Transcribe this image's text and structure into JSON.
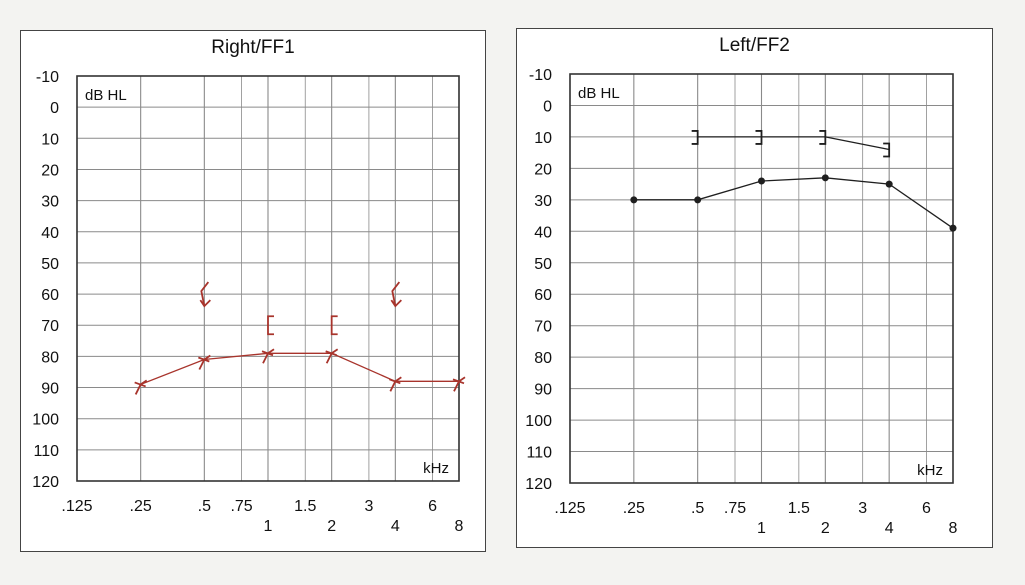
{
  "colors": {
    "right_trace": "#a8342c",
    "left_trace": "#1f1f1f",
    "grid": "#8a8a8a",
    "frame": "#333333"
  },
  "chart_data": [
    {
      "type": "line",
      "title": "Right/FF1",
      "ylabel": "dB HL",
      "xlabel": "kHz",
      "y_inverted": true,
      "ylim": [
        -10,
        120
      ],
      "yticks": [
        "-10",
        "0",
        "10",
        "20",
        "30",
        "40",
        "50",
        "60",
        "70",
        "80",
        "90",
        "100",
        "110",
        "120"
      ],
      "xticks": [
        ".125",
        ".25",
        ".5",
        ".75",
        "1",
        "1.5",
        "2",
        "3",
        "4",
        "6",
        "8"
      ],
      "grid": true,
      "series": [
        {
          "marker": "arrow",
          "x": [
            0.25,
            0.5,
            1,
            2,
            4,
            8
          ],
          "y": [
            89,
            81,
            79,
            79,
            88,
            88
          ]
        },
        {
          "marker": "[",
          "x": [
            1,
            2
          ],
          "y": [
            70,
            70
          ]
        },
        {
          "marker": "arrow-down",
          "x": [
            0.5,
            4
          ],
          "y": [
            60,
            60
          ]
        }
      ]
    },
    {
      "type": "line",
      "title": "Left/FF2",
      "ylabel": "dB HL",
      "xlabel": "kHz",
      "y_inverted": true,
      "ylim": [
        -10,
        120
      ],
      "yticks": [
        "-10",
        "0",
        "10",
        "20",
        "30",
        "40",
        "50",
        "60",
        "70",
        "80",
        "90",
        "100",
        "110",
        "120"
      ],
      "xticks": [
        ".125",
        ".25",
        ".5",
        ".75",
        "1",
        "1.5",
        "2",
        "3",
        "4",
        "6",
        "8"
      ],
      "grid": true,
      "series": [
        {
          "marker": "dot",
          "x": [
            0.25,
            0.5,
            1,
            2,
            4,
            8
          ],
          "y": [
            30,
            30,
            24,
            23,
            25,
            39
          ]
        },
        {
          "marker": "]",
          "x": [
            0.5,
            1,
            2,
            4
          ],
          "y": [
            10,
            10,
            10,
            14
          ]
        }
      ]
    }
  ]
}
